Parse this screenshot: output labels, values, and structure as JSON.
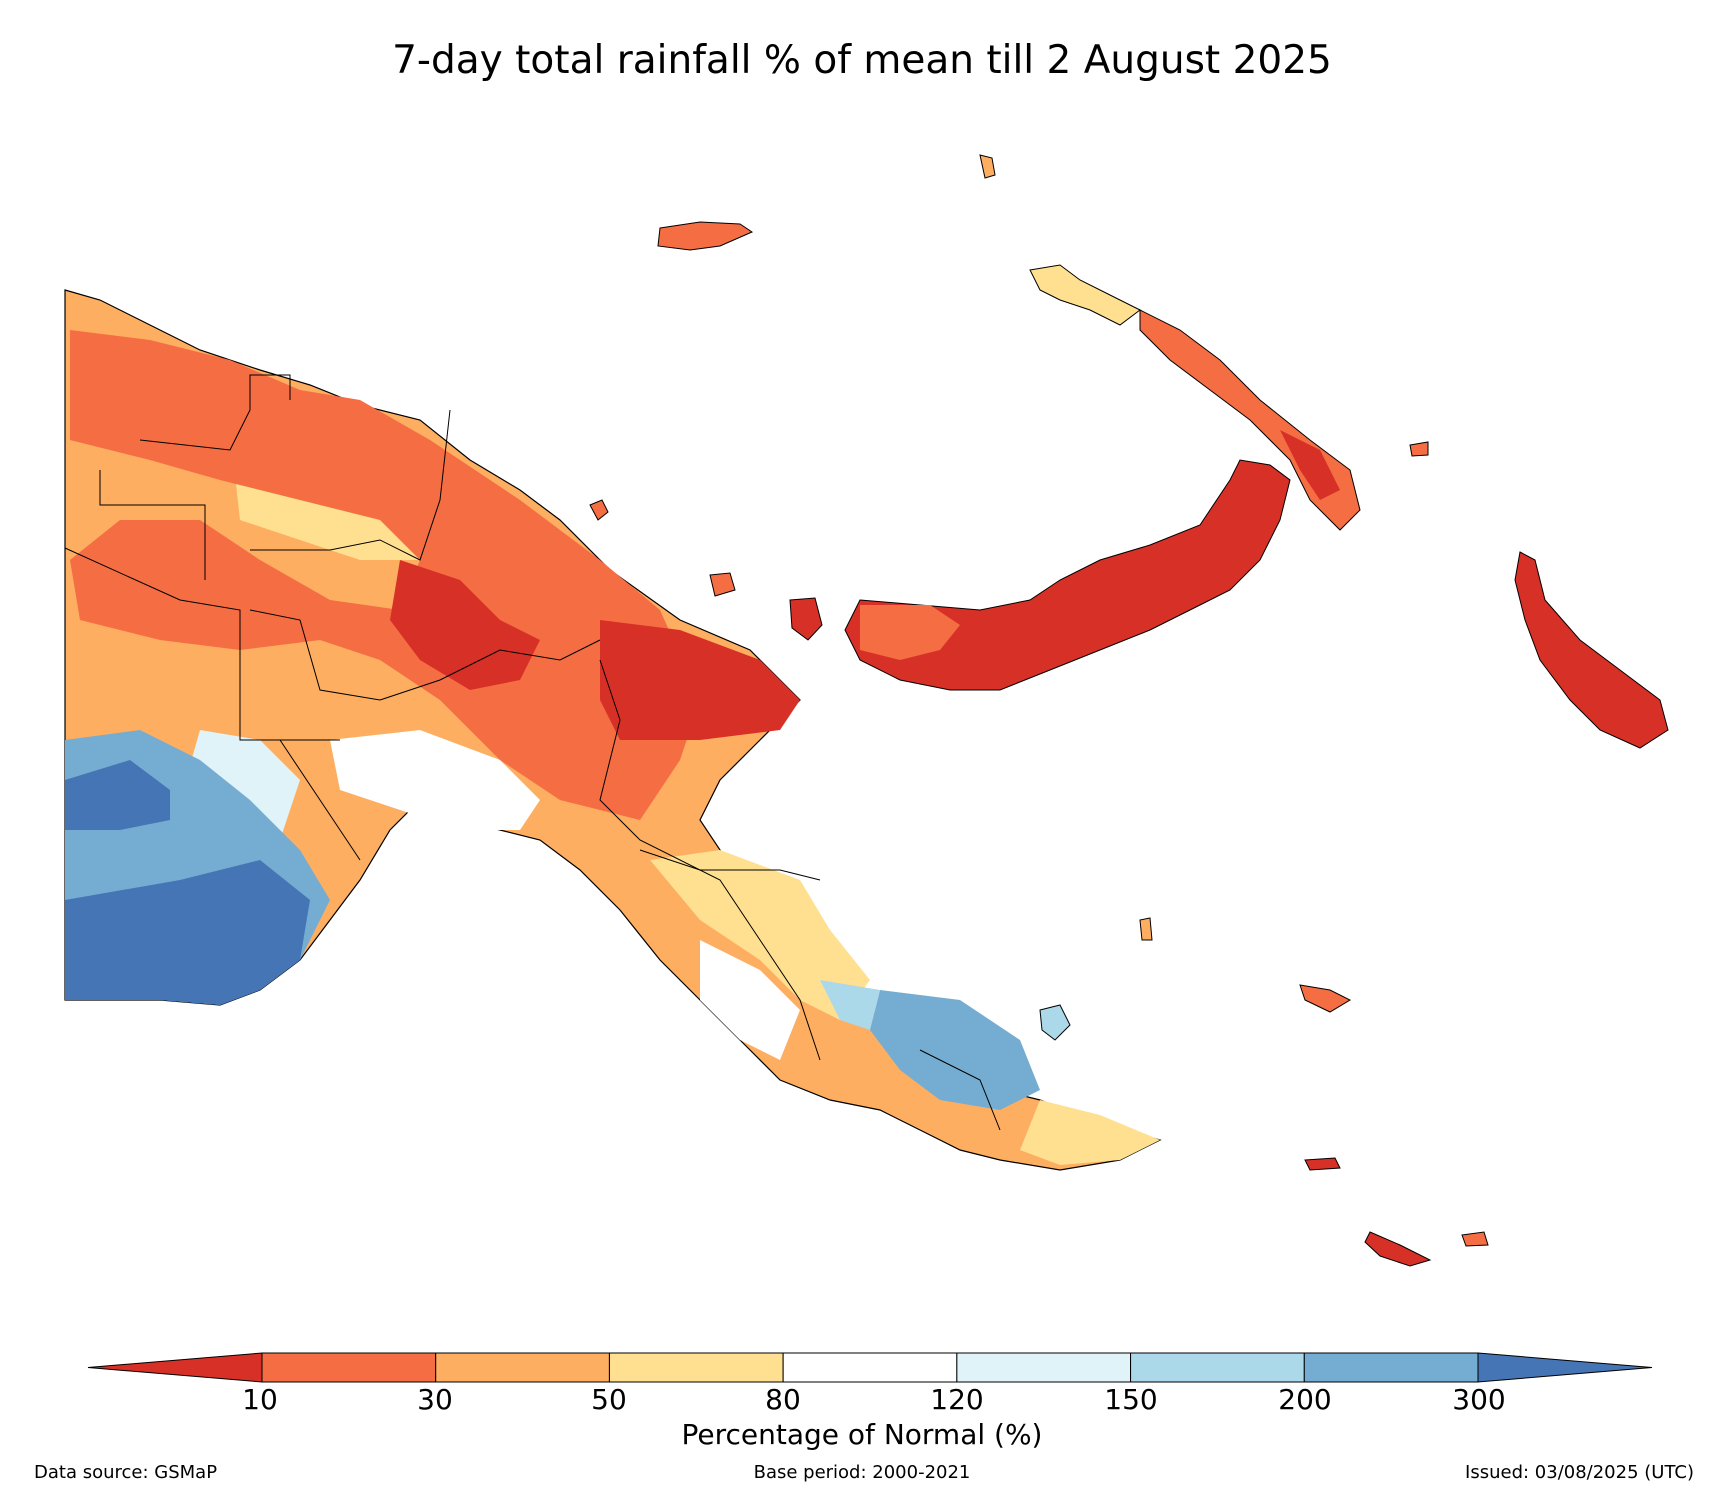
{
  "title": "7-day total rainfall % of mean till 2 August 2025",
  "colorbar": {
    "label": "Percentage of Normal (%)",
    "ticks": [
      "10",
      "30",
      "50",
      "80",
      "120",
      "150",
      "200",
      "300"
    ],
    "colors": [
      "#d73027",
      "#f46d43",
      "#fdae61",
      "#fee090",
      "#ffffff",
      "#e0f3f8",
      "#abd9e9",
      "#74add1",
      "#4575b4"
    ],
    "class_labels": [
      "<10",
      "10-30",
      "30-50",
      "50-80",
      "80-120",
      "120-150",
      "150-200",
      "200-300",
      ">300"
    ]
  },
  "footer": {
    "source": "Data source: GSMaP",
    "base_period": "Base period: 2000-2021",
    "issued": "Issued: 03/08/2025 (UTC)"
  },
  "map": {
    "region": "Papua New Guinea",
    "regions": [
      {
        "area": "northern mainland / Sepik",
        "class": "30-50"
      },
      {
        "area": "highlands",
        "class": "10-30"
      },
      {
        "area": "Madang / Morobe coast",
        "class": "<10"
      },
      {
        "area": "Western Province south",
        "class": ">300"
      },
      {
        "area": "Gulf coast",
        "class": "80-120"
      },
      {
        "area": "Papuan peninsula",
        "class": "50-80"
      },
      {
        "area": "Milne Bay",
        "class": "200-300"
      },
      {
        "area": "New Britain",
        "class": "<10"
      },
      {
        "area": "New Ireland",
        "class": "10-30"
      },
      {
        "area": "Bougainville",
        "class": "<10"
      },
      {
        "area": "Manus",
        "class": "10-30"
      }
    ]
  }
}
